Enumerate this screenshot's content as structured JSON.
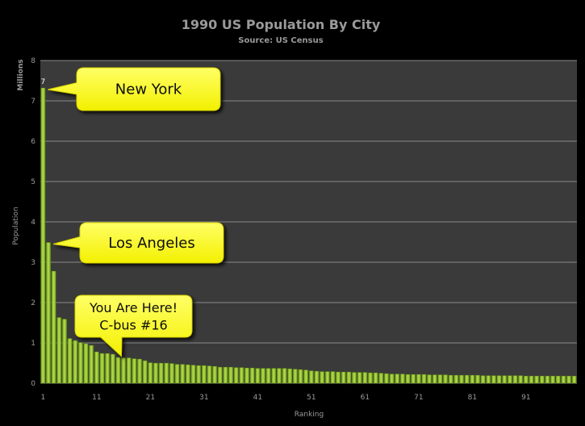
{
  "chart_data": {
    "type": "bar",
    "title": "1990 US Population  By City",
    "subtitle": "Source: US Census",
    "xlabel": "Ranking",
    "ylabel": "Population",
    "yunit_label": "Millions",
    "ylim": [
      0,
      8
    ],
    "yticks": [
      "0",
      "1",
      "2",
      "3",
      "4",
      "5",
      "6",
      "7",
      "8"
    ],
    "xticks": [
      "1",
      "11",
      "21",
      "31",
      "41",
      "51",
      "61",
      "71",
      "81",
      "91"
    ],
    "grid": true,
    "bar_color": "#9acd32",
    "plot_bg": "#3a3a3a",
    "x": [
      1,
      2,
      3,
      4,
      5,
      6,
      7,
      8,
      9,
      10,
      11,
      12,
      13,
      14,
      15,
      16,
      17,
      18,
      19,
      20,
      21,
      22,
      23,
      24,
      25,
      26,
      27,
      28,
      29,
      30,
      31,
      32,
      33,
      34,
      35,
      36,
      37,
      38,
      39,
      40,
      41,
      42,
      43,
      44,
      45,
      46,
      47,
      48,
      49,
      50,
      51,
      52,
      53,
      54,
      55,
      56,
      57,
      58,
      59,
      60,
      61,
      62,
      63,
      64,
      65,
      66,
      67,
      68,
      69,
      70,
      71,
      72,
      73,
      74,
      75,
      76,
      77,
      78,
      79,
      80,
      81,
      82,
      83,
      84,
      85,
      86,
      87,
      88,
      89,
      90,
      91,
      92,
      93,
      94,
      95,
      96,
      97,
      98,
      99,
      100
    ],
    "values": [
      7.32,
      3.49,
      2.78,
      1.63,
      1.59,
      1.11,
      1.06,
      1.01,
      0.98,
      0.94,
      0.78,
      0.74,
      0.74,
      0.72,
      0.64,
      0.63,
      0.63,
      0.61,
      0.6,
      0.56,
      0.51,
      0.5,
      0.5,
      0.5,
      0.49,
      0.47,
      0.47,
      0.46,
      0.45,
      0.44,
      0.44,
      0.43,
      0.42,
      0.4,
      0.4,
      0.4,
      0.39,
      0.39,
      0.38,
      0.38,
      0.37,
      0.37,
      0.37,
      0.37,
      0.37,
      0.37,
      0.36,
      0.35,
      0.34,
      0.33,
      0.31,
      0.3,
      0.29,
      0.29,
      0.29,
      0.28,
      0.28,
      0.28,
      0.27,
      0.27,
      0.27,
      0.26,
      0.26,
      0.25,
      0.24,
      0.23,
      0.23,
      0.23,
      0.22,
      0.22,
      0.22,
      0.22,
      0.21,
      0.21,
      0.21,
      0.21,
      0.2,
      0.2,
      0.2,
      0.2,
      0.2,
      0.2,
      0.19,
      0.19,
      0.19,
      0.19,
      0.19,
      0.19,
      0.19,
      0.19,
      0.18,
      0.18,
      0.18,
      0.18,
      0.18,
      0.18,
      0.18,
      0.18,
      0.18,
      0.18
    ],
    "data_labels": [
      {
        "x": 1,
        "text": "7"
      }
    ],
    "annotations": [
      {
        "text": "New York",
        "target_x": 1
      },
      {
        "text": "Los Angeles",
        "target_x": 2
      },
      {
        "text": "You Are Here!",
        "text2": "C-bus #16",
        "target_x": 16
      }
    ],
    "callout_color": "#ffff3c"
  }
}
